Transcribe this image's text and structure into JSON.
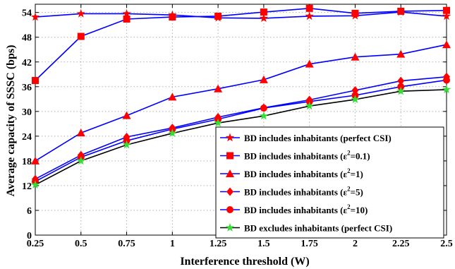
{
  "chart_data": {
    "type": "line",
    "xlabel": "Interference threshold (W)",
    "ylabel": "Average capacity of SSSC (bps)",
    "x": [
      0.25,
      0.5,
      0.75,
      1,
      1.25,
      1.5,
      1.75,
      2,
      2.25,
      2.5
    ],
    "x_tick_labels": [
      "0.25",
      "0.5",
      "0.75",
      "1",
      "1.25",
      "1.5",
      "1.75",
      "2",
      "2.25",
      "2.5"
    ],
    "y_ticks": [
      0,
      6,
      12,
      18,
      24,
      30,
      36,
      42,
      48,
      54
    ],
    "xlim": [
      0.25,
      2.5
    ],
    "ylim": [
      0,
      56
    ],
    "grid": true,
    "legend_position": "bottom-right",
    "series": [
      {
        "name": "BD includes inhabitants (perfect CSI)",
        "legend_parts": {
          "pre": "BD includes inhabitants (perfect CSI)",
          "sup": "",
          "post": ""
        },
        "color": "#0000ff",
        "marker": "star",
        "marker_color": "#ff0000",
        "values": [
          52.9,
          53.7,
          53.7,
          53.4,
          52.7,
          52.6,
          53.1,
          53.2,
          54.1,
          53.1
        ]
      },
      {
        "name": "BD includes inhabitants (ε2=0.1)",
        "legend_parts": {
          "pre": "BD includes inhabitants (ε",
          "sup": "2",
          "post": "=0.1)"
        },
        "color": "#0000ff",
        "marker": "square",
        "marker_color": "#ff0000",
        "values": [
          37.5,
          48.2,
          52.4,
          52.9,
          53.1,
          54.1,
          55.0,
          53.8,
          54.3,
          54.5
        ]
      },
      {
        "name": "BD includes inhabitants (ε2=1)",
        "legend_parts": {
          "pre": "BD includes inhabitants (ε",
          "sup": "2",
          "post": "=1)"
        },
        "color": "#0000ff",
        "marker": "triangle",
        "marker_color": "#ff0000",
        "values": [
          18.0,
          24.8,
          29.0,
          33.5,
          35.5,
          37.7,
          41.5,
          43.2,
          43.9,
          46.2
        ]
      },
      {
        "name": "BD includes inhabitants (ε2=5)",
        "legend_parts": {
          "pre": "BD includes inhabitants (ε",
          "sup": "2",
          "post": "=5)"
        },
        "color": "#0000ff",
        "marker": "diamond",
        "marker_color": "#ff0000",
        "values": [
          13.6,
          19.4,
          23.8,
          26.0,
          28.6,
          30.9,
          32.8,
          35.1,
          37.4,
          38.4
        ]
      },
      {
        "name": "BD includes inhabitants (ε2=10)",
        "legend_parts": {
          "pre": "BD includes inhabitants (ε",
          "sup": "2",
          "post": "=10)"
        },
        "color": "#0000ff",
        "marker": "circle",
        "marker_color": "#ff0000",
        "values": [
          13.0,
          18.9,
          22.9,
          25.7,
          28.1,
          30.8,
          32.4,
          33.9,
          36.0,
          37.6
        ]
      },
      {
        "name": "BD excludes inhabitants (perfect CSI)",
        "legend_parts": {
          "pre": "BD excludes inhabitants (perfect CSI)",
          "sup": "",
          "post": ""
        },
        "color": "#000000",
        "marker": "star",
        "marker_color": "#33dd33",
        "values": [
          12.2,
          18.0,
          21.9,
          24.7,
          27.2,
          28.9,
          31.3,
          32.9,
          34.9,
          35.3
        ]
      }
    ]
  }
}
